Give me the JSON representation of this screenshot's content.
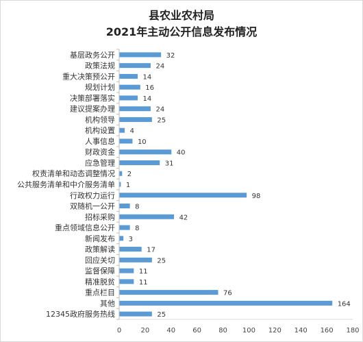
{
  "chart_data": {
    "type": "bar",
    "orientation": "horizontal",
    "title_line1": "县农业农村局",
    "title_line2": "2021年主动公开信息发布情况",
    "categories": [
      "基层政务公开",
      "政策法规",
      "重大决策预公开",
      "规划计划",
      "决策部署落实",
      "建议提案办理",
      "机构领导",
      "机构设置",
      "人事信息",
      "财政资金",
      "应急管理",
      "权责清单和动态调整情况",
      "公共服务清单和中介服务清单",
      "行政权力运行",
      "双随机一公开",
      "招标采购",
      "重点领域信息公开",
      "新闻发布",
      "政策解读",
      "回应关切",
      "监督保障",
      "精准脱贫",
      "重点栏目",
      "其他",
      "12345政府服务热线"
    ],
    "values": [
      32,
      24,
      14,
      16,
      14,
      24,
      25,
      4,
      10,
      40,
      31,
      2,
      1,
      98,
      8,
      42,
      8,
      3,
      17,
      25,
      11,
      11,
      76,
      164,
      25
    ],
    "xlim": [
      0,
      180
    ],
    "xticks": [
      0,
      20,
      40,
      60,
      80,
      100,
      120,
      140,
      160,
      180
    ],
    "bar_color": "#5b9bd5",
    "data_labels": true,
    "grid": false,
    "legend": "none"
  }
}
